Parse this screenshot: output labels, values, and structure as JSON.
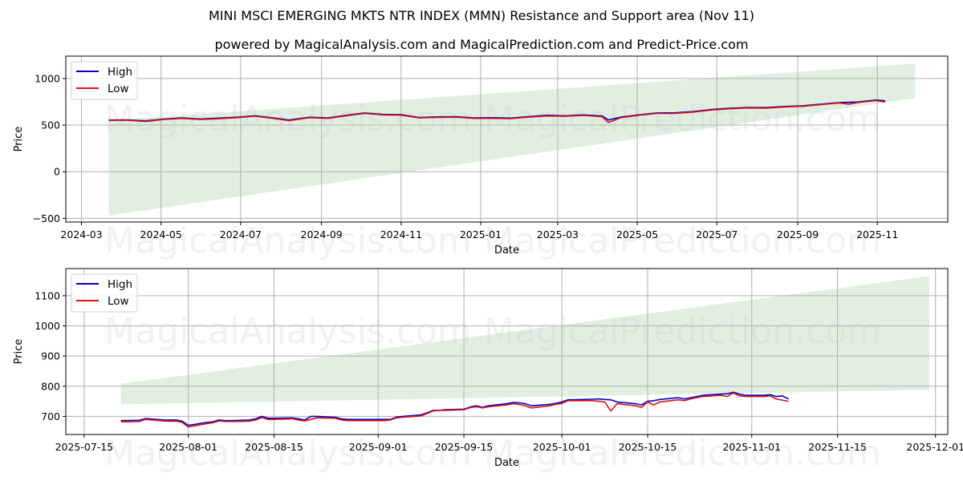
{
  "header": {
    "title": "MINI MSCI EMERGING MKTS NTR INDEX (MMN) Resistance and Support area (Nov 11)",
    "subtitle": "powered by MagicalAnalysis.com and MagicalPrediction.com and Predict-Price.com"
  },
  "watermarks": [
    "MagicalAnalysis.com",
    "MagicalPrediction.com"
  ],
  "colors": {
    "high": "#0000cc",
    "low": "#dd1111",
    "band": "#d7ead7",
    "grid": "#b0b0b0"
  },
  "chart_data": [
    {
      "type": "line",
      "title": "",
      "xlabel": "Date",
      "ylabel": "Price",
      "legend": [
        "High",
        "Low"
      ],
      "legend_position": "upper left",
      "grid": true,
      "ylim": [
        -540,
        1240
      ],
      "xlim": [
        "2024-02-18",
        "2025-12-25"
      ],
      "yticks": [
        -500,
        0,
        500,
        1000
      ],
      "xticks": [
        "2024-03",
        "2024-05",
        "2024-07",
        "2024-09",
        "2024-11",
        "2025-01",
        "2025-03",
        "2025-05",
        "2025-07",
        "2025-09",
        "2025-11"
      ],
      "band": {
        "x": [
          "2024-03-22",
          "2025-11-30"
        ],
        "upper": [
          550,
          1160
        ],
        "lower": [
          -470,
          790
        ]
      },
      "x": [
        "2024-03-22",
        "2024-04-05",
        "2024-04-19",
        "2024-05-03",
        "2024-05-17",
        "2024-05-31",
        "2024-06-14",
        "2024-06-28",
        "2024-07-12",
        "2024-07-26",
        "2024-08-07",
        "2024-08-23",
        "2024-09-06",
        "2024-09-20",
        "2024-10-04",
        "2024-10-18",
        "2024-11-01",
        "2024-11-15",
        "2024-11-29",
        "2024-12-13",
        "2024-12-27",
        "2025-01-10",
        "2025-01-24",
        "2025-02-07",
        "2025-02-21",
        "2025-03-07",
        "2025-03-21",
        "2025-04-04",
        "2025-04-09",
        "2025-04-18",
        "2025-05-02",
        "2025-05-16",
        "2025-05-30",
        "2025-06-13",
        "2025-06-27",
        "2025-07-11",
        "2025-07-25",
        "2025-08-08",
        "2025-08-22",
        "2025-09-05",
        "2025-09-19",
        "2025-10-03",
        "2025-10-10",
        "2025-10-17",
        "2025-10-31",
        "2025-11-07"
      ],
      "series": [
        {
          "name": "High",
          "values": [
            555,
            556,
            545,
            565,
            578,
            566,
            575,
            585,
            600,
            578,
            555,
            585,
            578,
            605,
            630,
            615,
            612,
            582,
            588,
            590,
            578,
            580,
            575,
            592,
            605,
            600,
            610,
            598,
            555,
            585,
            610,
            630,
            632,
            645,
            668,
            680,
            690,
            688,
            700,
            708,
            725,
            742,
            745,
            748,
            770,
            760
          ]
        },
        {
          "name": "Low",
          "values": [
            550,
            552,
            538,
            560,
            572,
            560,
            568,
            580,
            595,
            572,
            548,
            580,
            572,
            600,
            625,
            610,
            606,
            577,
            582,
            585,
            572,
            572,
            569,
            586,
            598,
            594,
            604,
            590,
            528,
            578,
            605,
            625,
            626,
            640,
            662,
            675,
            684,
            682,
            695,
            702,
            720,
            738,
            725,
            742,
            764,
            748
          ]
        }
      ]
    },
    {
      "type": "line",
      "title": "",
      "xlabel": "Date",
      "ylabel": "Price",
      "legend": [
        "High",
        "Low"
      ],
      "legend_position": "upper left",
      "grid": true,
      "ylim": [
        640,
        1190
      ],
      "xlim": [
        "2025-07-12",
        "2025-12-03"
      ],
      "yticks": [
        700,
        800,
        900,
        1000,
        1100
      ],
      "xticks": [
        "2025-07-15",
        "2025-08-01",
        "2025-08-15",
        "2025-09-01",
        "2025-09-15",
        "2025-10-01",
        "2025-10-15",
        "2025-11-01",
        "2025-11-15",
        "2025-12-01"
      ],
      "band": {
        "x": [
          "2025-07-21",
          "2025-11-30"
        ],
        "upper": [
          808,
          1165
        ],
        "lower": [
          740,
          788
        ]
      },
      "x": [
        "2025-07-21",
        "2025-07-24",
        "2025-07-25",
        "2025-07-28",
        "2025-07-29",
        "2025-07-30",
        "2025-07-31",
        "2025-08-01",
        "2025-08-04",
        "2025-08-05",
        "2025-08-06",
        "2025-08-07",
        "2025-08-08",
        "2025-08-11",
        "2025-08-12",
        "2025-08-13",
        "2025-08-14",
        "2025-08-15",
        "2025-08-18",
        "2025-08-19",
        "2025-08-20",
        "2025-08-21",
        "2025-08-22",
        "2025-08-25",
        "2025-08-26",
        "2025-08-27",
        "2025-08-28",
        "2025-08-29",
        "2025-09-01",
        "2025-09-02",
        "2025-09-03",
        "2025-09-04",
        "2025-09-05",
        "2025-09-08",
        "2025-09-09",
        "2025-09-10",
        "2025-09-11",
        "2025-09-12",
        "2025-09-15",
        "2025-09-16",
        "2025-09-17",
        "2025-09-18",
        "2025-09-19",
        "2025-09-22",
        "2025-09-23",
        "2025-09-24",
        "2025-09-25",
        "2025-09-26",
        "2025-09-29",
        "2025-09-30",
        "2025-10-01",
        "2025-10-02",
        "2025-10-03",
        "2025-10-06",
        "2025-10-07",
        "2025-10-08",
        "2025-10-09",
        "2025-10-10",
        "2025-10-13",
        "2025-10-14",
        "2025-10-15",
        "2025-10-16",
        "2025-10-17",
        "2025-10-20",
        "2025-10-21",
        "2025-10-22",
        "2025-10-23",
        "2025-10-24",
        "2025-10-27",
        "2025-10-28",
        "2025-10-29",
        "2025-10-30",
        "2025-10-31",
        "2025-11-03",
        "2025-11-04",
        "2025-11-05",
        "2025-11-06",
        "2025-11-07"
      ],
      "series": [
        {
          "name": "High",
          "values": [
            686,
            687,
            693,
            688,
            688,
            688,
            684,
            670,
            680,
            682,
            688,
            686,
            686,
            688,
            692,
            700,
            694,
            694,
            695,
            692,
            688,
            700,
            700,
            697,
            692,
            690,
            690,
            690,
            690,
            690,
            690,
            698,
            700,
            705,
            712,
            720,
            720,
            722,
            724,
            731,
            735,
            730,
            735,
            742,
            746,
            745,
            742,
            735,
            740,
            743,
            748,
            755,
            755,
            757,
            758,
            756,
            755,
            748,
            742,
            738,
            750,
            752,
            756,
            762,
            758,
            762,
            766,
            770,
            774,
            775,
            780,
            774,
            770,
            770,
            772,
            766,
            768,
            758
          ]
        },
        {
          "name": "Low",
          "values": [
            682,
            683,
            690,
            685,
            684,
            684,
            680,
            665,
            676,
            679,
            685,
            683,
            683,
            684,
            688,
            696,
            690,
            690,
            692,
            688,
            685,
            690,
            695,
            694,
            688,
            686,
            686,
            686,
            686,
            686,
            688,
            695,
            697,
            702,
            710,
            718,
            720,
            720,
            722,
            729,
            732,
            728,
            732,
            738,
            742,
            740,
            735,
            728,
            735,
            740,
            743,
            752,
            752,
            752,
            750,
            748,
            718,
            742,
            735,
            730,
            748,
            738,
            748,
            755,
            752,
            758,
            762,
            766,
            770,
            766,
            778,
            768,
            766,
            766,
            768,
            758,
            754,
            750
          ]
        }
      ]
    }
  ]
}
